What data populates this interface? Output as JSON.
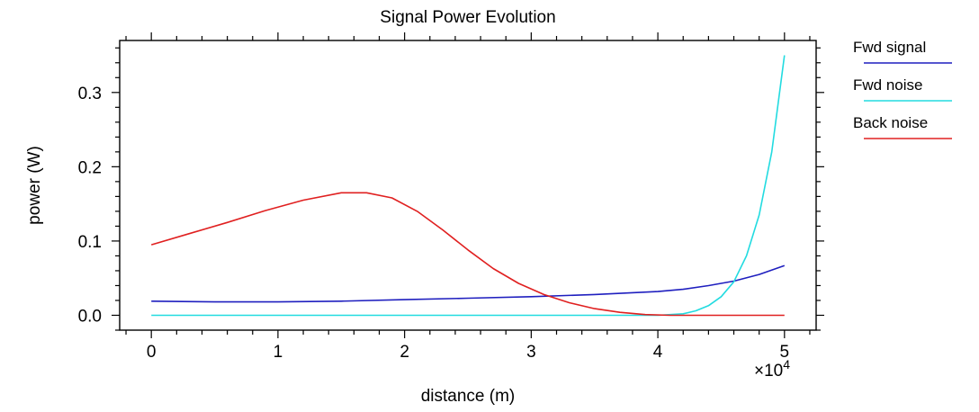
{
  "chart_data": {
    "type": "line",
    "title": "Signal Power Evolution",
    "xlabel": "distance (m)",
    "ylabel": "power (W)",
    "x_multiplier": "×10",
    "x_multiplier_exp": "4",
    "xlim": [
      -0.25,
      5.25
    ],
    "ylim": [
      -0.02,
      0.37
    ],
    "x_ticks": [
      0,
      1,
      2,
      3,
      4,
      5
    ],
    "x_tick_labels": [
      "0",
      "1",
      "2",
      "3",
      "4",
      "5"
    ],
    "y_ticks": [
      0.0,
      0.1,
      0.2,
      0.3
    ],
    "y_tick_labels": [
      "0.0",
      "0.1",
      "0.2",
      "0.3"
    ],
    "grid": false,
    "legend_position": "right",
    "series": [
      {
        "name": "Fwd signal",
        "color": "#1f1fbf",
        "x": [
          0,
          0.5,
          1.0,
          1.5,
          2.0,
          2.5,
          3.0,
          3.5,
          4.0,
          4.2,
          4.4,
          4.6,
          4.8,
          5.0
        ],
        "y": [
          0.019,
          0.018,
          0.018,
          0.019,
          0.021,
          0.023,
          0.025,
          0.028,
          0.032,
          0.035,
          0.04,
          0.046,
          0.055,
          0.067
        ]
      },
      {
        "name": "Fwd noise",
        "color": "#22dbe0",
        "x": [
          0,
          1.0,
          2.0,
          3.0,
          3.8,
          4.0,
          4.2,
          4.3,
          4.4,
          4.5,
          4.6,
          4.7,
          4.8,
          4.9,
          5.0
        ],
        "y": [
          0.0,
          0.0,
          0.0,
          0.0,
          0.0,
          0.0,
          0.002,
          0.006,
          0.013,
          0.025,
          0.045,
          0.08,
          0.135,
          0.22,
          0.35
        ]
      },
      {
        "name": "Back noise",
        "color": "#e02020",
        "x": [
          0,
          0.3,
          0.6,
          0.9,
          1.2,
          1.5,
          1.7,
          1.9,
          2.1,
          2.3,
          2.5,
          2.7,
          2.9,
          3.1,
          3.3,
          3.5,
          3.7,
          3.9,
          4.1,
          4.5,
          5.0
        ],
        "y": [
          0.095,
          0.11,
          0.125,
          0.141,
          0.155,
          0.165,
          0.165,
          0.158,
          0.14,
          0.115,
          0.088,
          0.063,
          0.043,
          0.028,
          0.017,
          0.009,
          0.004,
          0.001,
          0.0,
          0.0,
          0.0
        ]
      }
    ]
  }
}
